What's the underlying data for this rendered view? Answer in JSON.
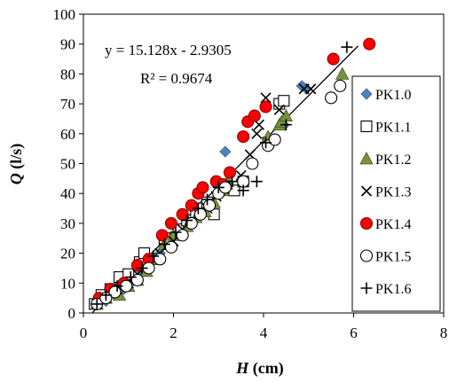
{
  "chart_data": {
    "type": "scatter",
    "xlabel": {
      "symbol": "H",
      "unit": " (cm)"
    },
    "ylabel": {
      "symbol": "Q",
      "unit": " (l/s)"
    },
    "xlim": [
      0,
      8
    ],
    "ylim": [
      0,
      100
    ],
    "xticks": [
      "0",
      "2",
      "4",
      "6",
      "8"
    ],
    "yticks": [
      "0",
      "10",
      "20",
      "30",
      "40",
      "50",
      "60",
      "70",
      "80",
      "90",
      "100"
    ],
    "grid": false,
    "legend_position": "right",
    "trendline": {
      "slope": 15.128,
      "intercept": -2.9305,
      "x_range": [
        0.2,
        6.1
      ],
      "equation": "y = 15.128x - 2.9305",
      "r2": "R² = 0.9674"
    },
    "series": [
      {
        "name": "PK1.0",
        "marker": "diamond",
        "color": "#4f81bd",
        "points": [
          [
            0.3,
            3
          ],
          [
            0.5,
            4
          ],
          [
            0.7,
            6
          ],
          [
            0.9,
            8
          ],
          [
            1.1,
            11
          ],
          [
            1.3,
            14
          ],
          [
            1.5,
            17
          ],
          [
            1.7,
            20
          ],
          [
            1.9,
            24
          ],
          [
            2.1,
            27
          ],
          [
            2.3,
            30
          ],
          [
            2.5,
            33
          ],
          [
            2.7,
            37
          ],
          [
            3.1,
            42
          ],
          [
            3.15,
            54
          ],
          [
            4.45,
            63
          ],
          [
            4.85,
            76
          ],
          [
            4.95,
            75
          ]
        ]
      },
      {
        "name": "PK1.1",
        "marker": "square",
        "color": "#ffffff",
        "points": [
          [
            0.25,
            3
          ],
          [
            0.4,
            6
          ],
          [
            0.6,
            8
          ],
          [
            0.8,
            12
          ],
          [
            1.0,
            13
          ],
          [
            1.25,
            17
          ],
          [
            1.35,
            20
          ],
          [
            1.5,
            18
          ],
          [
            1.8,
            25
          ],
          [
            2.1,
            28
          ],
          [
            2.3,
            31
          ],
          [
            2.5,
            33
          ],
          [
            2.6,
            35
          ],
          [
            2.75,
            37
          ],
          [
            2.9,
            33
          ],
          [
            3.2,
            42
          ],
          [
            3.35,
            41
          ],
          [
            3.55,
            44
          ],
          [
            4.1,
            57
          ],
          [
            4.35,
            70
          ],
          [
            4.45,
            71
          ]
        ]
      },
      {
        "name": "PK1.2",
        "marker": "triangle",
        "color": "#77933c",
        "points": [
          [
            0.3,
            3
          ],
          [
            0.5,
            5
          ],
          [
            0.8,
            6
          ],
          [
            1.0,
            9
          ],
          [
            1.2,
            11
          ],
          [
            1.4,
            14
          ],
          [
            1.6,
            18
          ],
          [
            1.8,
            23
          ],
          [
            2.0,
            26
          ],
          [
            2.3,
            29
          ],
          [
            2.5,
            32
          ],
          [
            2.7,
            34
          ],
          [
            2.9,
            37
          ],
          [
            3.1,
            41
          ],
          [
            3.2,
            44
          ],
          [
            4.1,
            59
          ],
          [
            4.35,
            63
          ],
          [
            4.4,
            64
          ],
          [
            4.5,
            66
          ],
          [
            5.75,
            80
          ]
        ]
      },
      {
        "name": "PK1.3",
        "marker": "x",
        "color": "#000000",
        "points": [
          [
            0.3,
            3
          ],
          [
            0.5,
            5
          ],
          [
            0.75,
            8
          ],
          [
            1.0,
            10
          ],
          [
            1.2,
            13
          ],
          [
            1.45,
            16
          ],
          [
            1.7,
            20
          ],
          [
            2.0,
            24
          ],
          [
            2.2,
            28
          ],
          [
            2.4,
            31
          ],
          [
            2.6,
            34
          ],
          [
            2.75,
            35
          ],
          [
            2.95,
            39
          ],
          [
            3.2,
            43
          ],
          [
            3.5,
            46
          ],
          [
            3.7,
            53
          ],
          [
            3.85,
            60
          ],
          [
            3.9,
            63
          ],
          [
            4.05,
            72
          ],
          [
            4.35,
            68
          ],
          [
            4.9,
            75
          ],
          [
            5.05,
            75
          ]
        ]
      },
      {
        "name": "PK1.4",
        "marker": "circle",
        "color": "#ff0000",
        "points": [
          [
            0.35,
            5
          ],
          [
            0.6,
            8
          ],
          [
            0.9,
            10
          ],
          [
            1.2,
            16
          ],
          [
            1.45,
            18
          ],
          [
            1.75,
            26
          ],
          [
            1.95,
            30
          ],
          [
            2.2,
            33
          ],
          [
            2.4,
            36
          ],
          [
            2.55,
            40
          ],
          [
            2.65,
            42
          ],
          [
            2.95,
            44
          ],
          [
            3.1,
            43
          ],
          [
            3.25,
            47
          ],
          [
            3.55,
            59
          ],
          [
            3.65,
            64
          ],
          [
            3.8,
            66
          ],
          [
            4.05,
            69
          ],
          [
            5.55,
            85
          ],
          [
            6.35,
            90
          ]
        ]
      },
      {
        "name": "PK1.5",
        "marker": "circle",
        "color": "#ffffff",
        "points": [
          [
            0.3,
            3
          ],
          [
            0.5,
            5
          ],
          [
            0.7,
            7
          ],
          [
            0.95,
            9
          ],
          [
            1.2,
            11
          ],
          [
            1.45,
            15
          ],
          [
            1.7,
            18
          ],
          [
            1.95,
            22
          ],
          [
            2.2,
            26
          ],
          [
            2.4,
            30
          ],
          [
            2.6,
            33
          ],
          [
            2.8,
            36
          ],
          [
            3.0,
            40
          ],
          [
            3.15,
            42
          ],
          [
            3.55,
            44
          ],
          [
            3.75,
            50
          ],
          [
            4.1,
            56
          ],
          [
            4.25,
            58
          ],
          [
            5.5,
            72
          ],
          [
            5.7,
            76
          ]
        ]
      },
      {
        "name": "PK1.6",
        "marker": "plus",
        "color": "#000000",
        "points": [
          [
            0.3,
            3
          ],
          [
            0.5,
            6
          ],
          [
            0.75,
            9
          ],
          [
            1.05,
            12
          ],
          [
            1.3,
            15
          ],
          [
            1.55,
            19
          ],
          [
            1.8,
            23
          ],
          [
            2.05,
            27
          ],
          [
            2.3,
            31
          ],
          [
            2.55,
            35
          ],
          [
            2.75,
            38
          ],
          [
            3.0,
            42
          ],
          [
            3.3,
            44
          ],
          [
            3.55,
            41
          ],
          [
            3.85,
            44
          ],
          [
            4.05,
            57
          ],
          [
            4.5,
            63
          ],
          [
            5.85,
            89
          ]
        ]
      }
    ]
  }
}
